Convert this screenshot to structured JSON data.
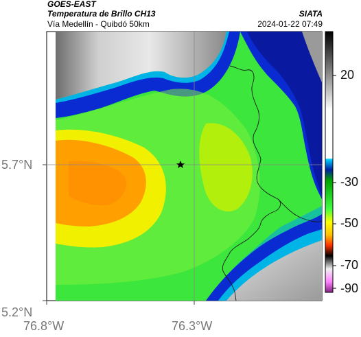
{
  "header": {
    "satellite": "GOES-EAST",
    "product": "Temperatura de Brillo CH13",
    "route": "Vía Medellín - Quibdó 50km",
    "organization": "SIATA",
    "datetime": "2024-01-22 07:49"
  },
  "map": {
    "lat_ticks": [
      "5.7°N",
      "5.2°N"
    ],
    "lon_ticks": [
      "76.8°W",
      "76.3°W"
    ],
    "marker": "star-marker",
    "colorbar_ticks": [
      "20",
      "-30",
      "-50",
      "-70",
      "-90"
    ],
    "colors": {
      "warm": "#ffffff",
      "cyan": "#00b4e6",
      "blue": "#0028c8",
      "green": "#32e632",
      "yellow": "#f0f000",
      "orange": "#ff9b00",
      "red": "#e60000",
      "magenta": "#b428b4"
    }
  }
}
